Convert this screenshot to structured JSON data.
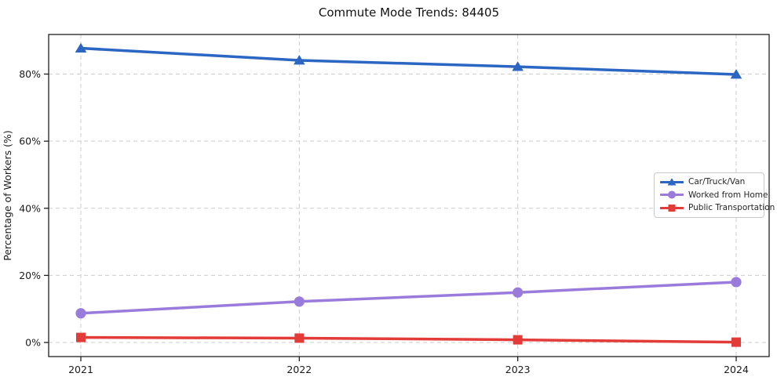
{
  "chart_data": {
    "type": "line",
    "title": "Commute Mode Trends: 84405",
    "xlabel": "",
    "ylabel": "Percentage of Workers (%)",
    "x": [
      "2021",
      "2022",
      "2023",
      "2024"
    ],
    "series": [
      {
        "name": "Car/Truck/Van",
        "values": [
          87.7,
          84.1,
          82.2,
          79.9
        ],
        "color": "#2b66c2",
        "marker": "triangle-up"
      },
      {
        "name": "Worked from Home",
        "values": [
          8.7,
          12.2,
          14.9,
          18.0
        ],
        "color": "#9a7bdb",
        "marker": "circle"
      },
      {
        "name": "Public Transportation",
        "values": [
          1.5,
          1.3,
          0.8,
          0.1
        ],
        "color": "#e33b38",
        "marker": "square"
      }
    ],
    "yticks": [
      0,
      20,
      40,
      60,
      80
    ],
    "ytick_suffix": "%",
    "ylim": [
      -4.2,
      91.8
    ],
    "grid": true,
    "grid_color": "#cdcdcd",
    "spine_color": "#1f1f1f",
    "legend_position": "center-right"
  }
}
